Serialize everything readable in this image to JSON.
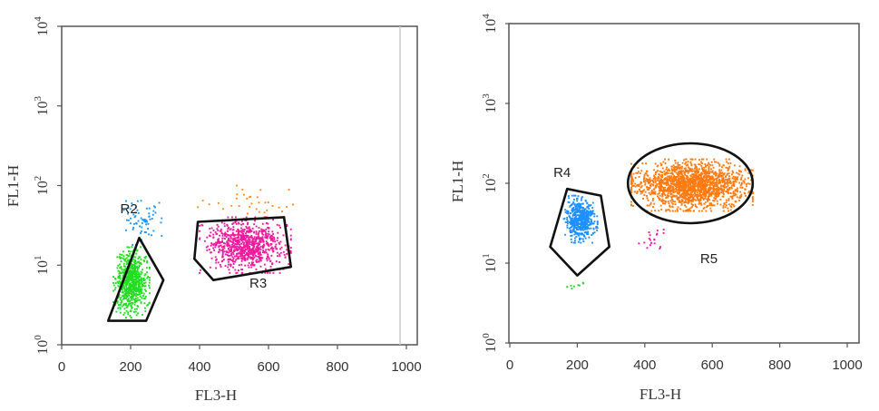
{
  "chart_data": [
    {
      "type": "scatter",
      "xlabel": "FL3-H",
      "ylabel": "FL1-H",
      "xlim": [
        0,
        1000
      ],
      "ylim": [
        1,
        10000
      ],
      "yscale": "log",
      "xticks": [
        "0",
        "200",
        "400",
        "600",
        "800",
        "1000"
      ],
      "yticks": [
        {
          "base": "10",
          "exp": "0"
        },
        {
          "base": "10",
          "exp": "1"
        },
        {
          "base": "10",
          "exp": "2"
        },
        {
          "base": "10",
          "exp": "3"
        },
        {
          "base": "10",
          "exp": "4"
        }
      ],
      "grid": false,
      "gates": [
        {
          "label": "R2",
          "label_at": [
            195,
            45
          ],
          "polygon": []
        },
        {
          "label": "",
          "polygon": [
            [
              135,
              2.0
            ],
            [
              225,
              22
            ],
            [
              295,
              6.5
            ],
            [
              245,
              2.0
            ]
          ]
        },
        {
          "label": "R3",
          "label_at": [
            570,
            5.2
          ],
          "polygon": [
            [
              395,
              35
            ],
            [
              645,
              40
            ],
            [
              665,
              9.5
            ],
            [
              440,
              6.5
            ],
            [
              385,
              12
            ]
          ]
        }
      ],
      "series": [
        {
          "color": "#2196f3",
          "count": 70,
          "x": [
            170,
            290
          ],
          "y": [
            18,
            75
          ]
        },
        {
          "color": "#22dd22",
          "count": 700,
          "x": [
            150,
            255
          ],
          "y": [
            2.2,
            17
          ]
        },
        {
          "color": "#ff8c1a",
          "count": 35,
          "x": [
            395,
            720
          ],
          "y": [
            35,
            100
          ]
        },
        {
          "color": "#ee1a9d",
          "count": 850,
          "x": [
            400,
            665
          ],
          "y": [
            8,
            40
          ]
        }
      ]
    },
    {
      "type": "scatter",
      "xlabel": "FL3-H",
      "ylabel": "FL1-H",
      "xlim": [
        0,
        1000
      ],
      "ylim": [
        1,
        10000
      ],
      "yscale": "log",
      "xticks": [
        "0",
        "200",
        "400",
        "600",
        "800",
        "1000"
      ],
      "yticks": [
        {
          "base": "10",
          "exp": "0"
        },
        {
          "base": "10",
          "exp": "1"
        },
        {
          "base": "10",
          "exp": "2"
        },
        {
          "base": "10",
          "exp": "3"
        },
        {
          "base": "10",
          "exp": "4"
        }
      ],
      "grid": false,
      "gates": [
        {
          "label": "R4",
          "label_at": [
            155,
            120
          ],
          "polygon": [
            [
              170,
              85
            ],
            [
              270,
              70
            ],
            [
              295,
              16
            ],
            [
              200,
              7
            ],
            [
              120,
              16
            ]
          ]
        },
        {
          "label": "R5",
          "label_at": [
            590,
            10
          ],
          "ellipse": {
            "cx": 535,
            "cy": 100,
            "rx": 185,
            "ry_log": 0.5
          }
        }
      ],
      "series": [
        {
          "color": "#1e90ff",
          "count": 500,
          "x": [
            160,
            260
          ],
          "y": [
            18,
            70
          ]
        },
        {
          "color": "#ff7a10",
          "count": 1700,
          "x": [
            360,
            720
          ],
          "y": [
            45,
            200
          ]
        },
        {
          "color": "#ee1a9d",
          "count": 20,
          "x": [
            380,
            470
          ],
          "y": [
            12,
            30
          ]
        },
        {
          "color": "#33cc33",
          "count": 8,
          "x": [
            170,
            230
          ],
          "y": [
            4.5,
            6.5
          ]
        }
      ]
    }
  ]
}
